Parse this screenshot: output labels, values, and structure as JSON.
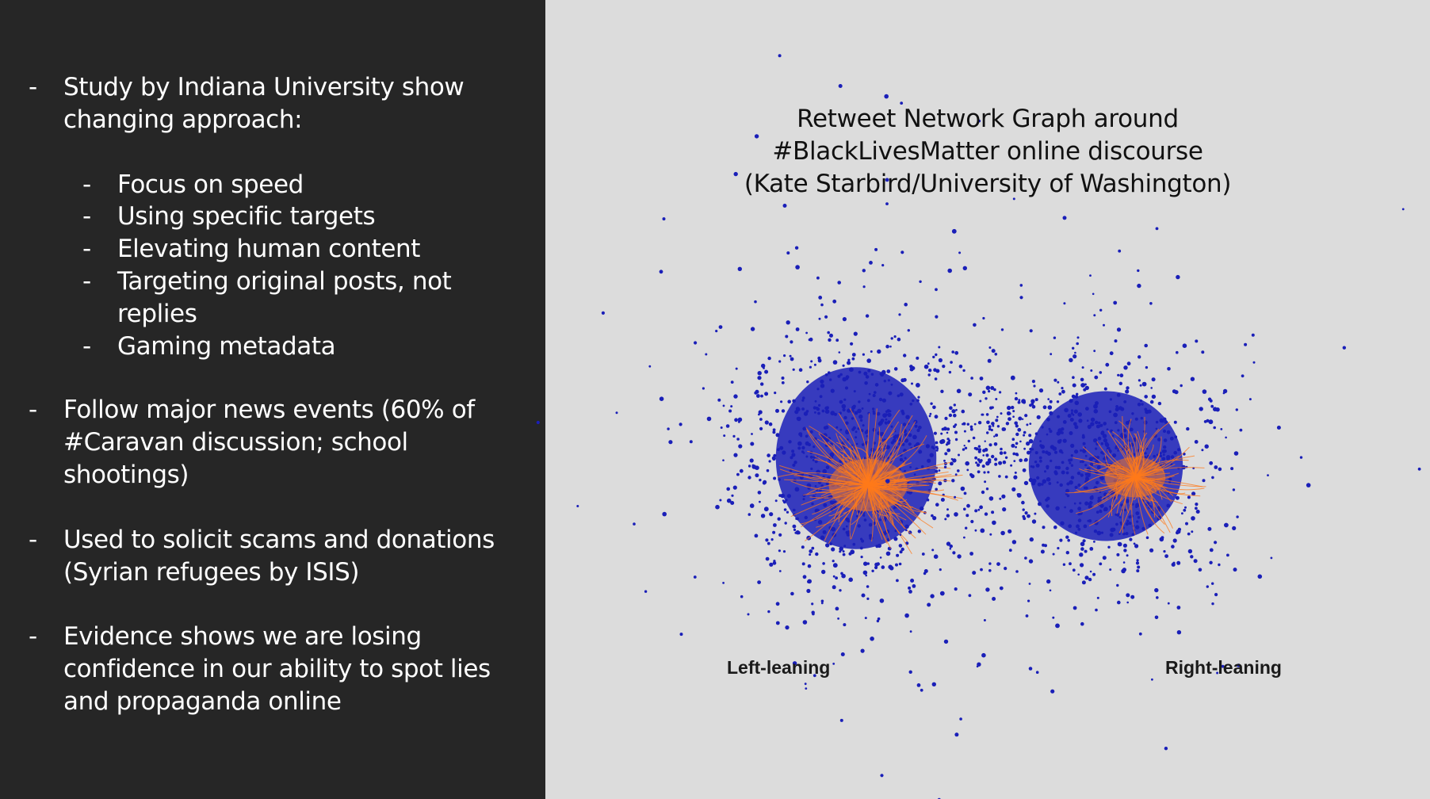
{
  "bullets": {
    "study_line1": "Study by Indiana University show",
    "study_line2": "changing approach:",
    "sub_items": [
      "Focus on speed",
      "Using specific targets",
      "Elevating human content",
      "Targeting original posts, not",
      "replies",
      "Gaming metadata"
    ],
    "news_line1": "Follow major news events (60% of",
    "news_line2": "#Caravan discussion; school",
    "news_line3": "shootings)",
    "scams_line1": "Used to solicit scams and donations",
    "scams_line2": "(Syrian refugees by ISIS)",
    "evidence_line1": "Evidence shows we are losing",
    "evidence_line2": "confidence in our ability to spot lies",
    "evidence_line3": "and propaganda online",
    "dash": "-"
  },
  "chart": {
    "title_line1": "Retweet Network Graph around",
    "title_line2": "#BlackLivesMatter online discourse",
    "title_line3": "(Kate Starbird/University of Washington)",
    "left_label": "Left-leaning",
    "right_label": "Right-leaning",
    "colors": {
      "node": "#1a1fb8",
      "edge": "#ff7a1a",
      "left_panel_bg": "#262626",
      "right_panel_bg": "#dcdcdc"
    }
  }
}
